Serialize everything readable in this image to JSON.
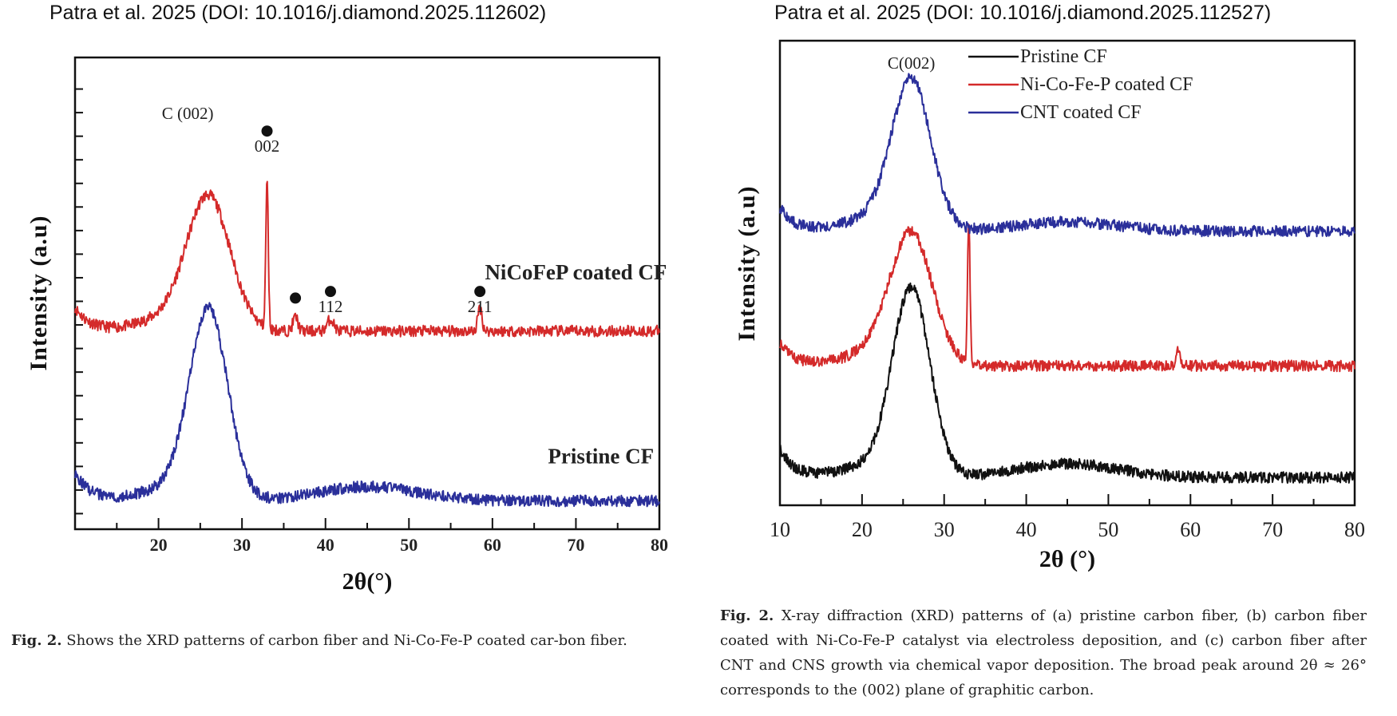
{
  "sources": {
    "left": "Patra et al. 2025 (DOI: 10.1016/j.diamond.2025.112602)",
    "right": "Patra et al. 2025 (DOI: 10.1016/j.diamond.2025.112527)"
  },
  "captions": {
    "left": {
      "label": "Fig. 2.",
      "text": " Shows the XRD patterns of carbon fiber and Ni-Co-Fe-P coated car-bon fiber."
    },
    "right": {
      "label": "Fig. 2.",
      "text": "  X-ray diffraction (XRD) patterns of (a) pristine carbon fiber, (b) carbon fiber coated with Ni-Co-Fe-P catalyst via electroless deposition, and (c) carbon fiber after CNT and CNS growth via chemical vapor deposition. The broad peak around 2θ ≈ 26° corresponds to the (002) plane of graphitic carbon."
    }
  },
  "chart_data": [
    {
      "type": "line",
      "title": "",
      "xlabel": "2θ(°)",
      "ylabel": "Intensity (a.u)",
      "xlim": [
        10,
        80
      ],
      "ylim": [
        0,
        100
      ],
      "xticks": [
        20,
        30,
        40,
        50,
        60,
        70,
        80
      ],
      "yticks_labeled": false,
      "grid": false,
      "legend": "none",
      "series": [
        {
          "name": "NiCoFeP coated CF",
          "color": "#d42a2a",
          "baseline": 42,
          "peaks": [
            {
              "x": 26,
              "height": 28,
              "width": 2.6
            },
            {
              "x": 33.0,
              "height": 31,
              "width": 0.15
            },
            {
              "x": 36.4,
              "height": 3,
              "width": 0.3
            },
            {
              "x": 40.6,
              "height": 2.5,
              "width": 0.4
            },
            {
              "x": 58.5,
              "height": 5,
              "width": 0.25
            }
          ],
          "edge_rise": 5
        },
        {
          "name": "Pristine CF",
          "color": "#2a2f9a",
          "baseline": 6,
          "peaks": [
            {
              "x": 26,
              "height": 40,
              "width": 2.3
            },
            {
              "x": 45,
              "height": 3,
              "width": 6
            }
          ],
          "edge_rise": 6
        }
      ],
      "annotations": [
        {
          "text": "C (002)",
          "x": 23.5,
          "y": 87
        },
        {
          "text": "002",
          "x": 33.0,
          "y": 80,
          "marker": "dot"
        },
        {
          "text": "",
          "x": 36.4,
          "y": 49,
          "marker": "dot"
        },
        {
          "text": "112",
          "x": 40.6,
          "y": 46,
          "marker": "dot"
        },
        {
          "text": "211",
          "x": 58.5,
          "y": 46,
          "marker": "dot"
        },
        {
          "text": "NiCoFeP coated CF",
          "x": 70,
          "y": 53,
          "bold": true
        },
        {
          "text": "Pristine CF",
          "x": 73,
          "y": 14,
          "bold": true
        }
      ]
    },
    {
      "type": "line",
      "title": "",
      "xlabel": "2θ (°)",
      "ylabel": "Intensity (a.u)",
      "xlim": [
        10,
        80
      ],
      "ylim": [
        0,
        100
      ],
      "xticks": [
        10,
        20,
        30,
        40,
        50,
        60,
        70,
        80
      ],
      "yticks_labeled": false,
      "grid": false,
      "legend": "top-right",
      "series": [
        {
          "name": "Pristine CF",
          "color": "#111111",
          "baseline": 6,
          "peaks": [
            {
              "x": 26,
              "height": 40,
              "width": 2.3
            },
            {
              "x": 45,
              "height": 3,
              "width": 6
            }
          ],
          "edge_rise": 6
        },
        {
          "name": "Ni-Co-Fe-P coated CF",
          "color": "#d42a2a",
          "baseline": 30,
          "peaks": [
            {
              "x": 26,
              "height": 28,
              "width": 2.6
            },
            {
              "x": 33.0,
              "height": 31,
              "width": 0.15
            },
            {
              "x": 58.5,
              "height": 3,
              "width": 0.3
            }
          ],
          "edge_rise": 5
        },
        {
          "name": "CNT coated CF",
          "color": "#2a2f9a",
          "baseline": 59,
          "peaks": [
            {
              "x": 26,
              "height": 32,
              "width": 2.4
            },
            {
              "x": 45,
              "height": 2,
              "width": 6
            }
          ],
          "edge_rise": 5
        }
      ],
      "annotations": [
        {
          "text": "C(002)",
          "x": 26,
          "y": 94
        }
      ]
    }
  ]
}
